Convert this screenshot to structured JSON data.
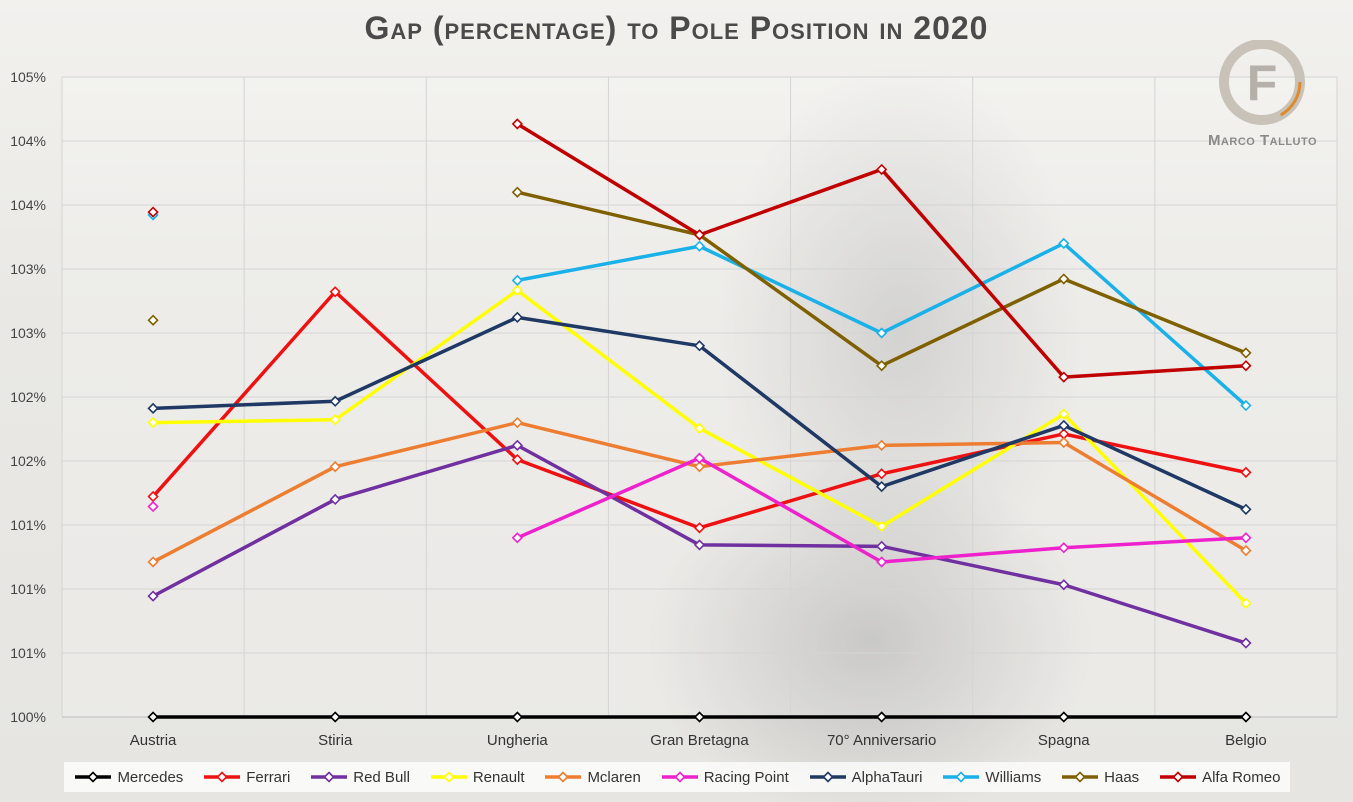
{
  "chart_data": {
    "type": "line",
    "title": "Gap (percentage) to Pole Position in 2020",
    "categories": [
      "Austria",
      "Stiria",
      "Ungheria",
      "Gran Bretagna",
      "70° Anniversario",
      "Spagna",
      "Belgio"
    ],
    "y_tick_labels": [
      "100%",
      "101%",
      "101%",
      "101%",
      "102%",
      "102%",
      "103%",
      "103%",
      "104%",
      "104%",
      "105%"
    ],
    "ylim": [
      100,
      104.5
    ],
    "grid": true,
    "legend_position": "bottom",
    "series": [
      {
        "name": "Mercedes",
        "color": "#000000",
        "values": [
          100.0,
          100.0,
          100.0,
          100.0,
          100.0,
          100.0,
          100.0
        ]
      },
      {
        "name": "Ferrari",
        "color": "#ee1111",
        "values": [
          101.55,
          102.99,
          101.81,
          101.33,
          101.71,
          101.99,
          101.72
        ]
      },
      {
        "name": "Red Bull",
        "color": "#7030a0",
        "values": [
          100.85,
          101.53,
          101.91,
          101.21,
          101.2,
          100.93,
          100.52
        ]
      },
      {
        "name": "Renault",
        "color": "#ffff00",
        "values": [
          102.07,
          102.09,
          103.0,
          102.03,
          101.34,
          102.13,
          100.8
        ]
      },
      {
        "name": "Mclaren",
        "color": "#ed7d31",
        "values": [
          101.09,
          101.76,
          102.07,
          101.76,
          101.91,
          101.93,
          101.17
        ]
      },
      {
        "name": "Racing Point",
        "color": "#ee22cc",
        "values": [
          101.48,
          null,
          101.26,
          101.82,
          101.09,
          101.19,
          101.26
        ]
      },
      {
        "name": "AlphaTauri",
        "color": "#1f3864",
        "values": [
          102.17,
          102.22,
          102.81,
          102.61,
          101.62,
          102.05,
          101.46
        ]
      },
      {
        "name": "Williams",
        "color": "#1ab0e8",
        "values": [
          103.53,
          null,
          103.07,
          103.31,
          102.7,
          103.33,
          102.19
        ]
      },
      {
        "name": "Haas",
        "color": "#7f6000",
        "values": [
          102.79,
          null,
          103.69,
          103.39,
          102.47,
          103.08,
          102.56
        ]
      },
      {
        "name": "Alfa Romeo",
        "color": "#c00000",
        "values": [
          103.55,
          null,
          104.17,
          103.39,
          103.85,
          102.39,
          102.47
        ]
      }
    ]
  },
  "logo": {
    "letter": "F",
    "text": "Marco Talluto"
  }
}
